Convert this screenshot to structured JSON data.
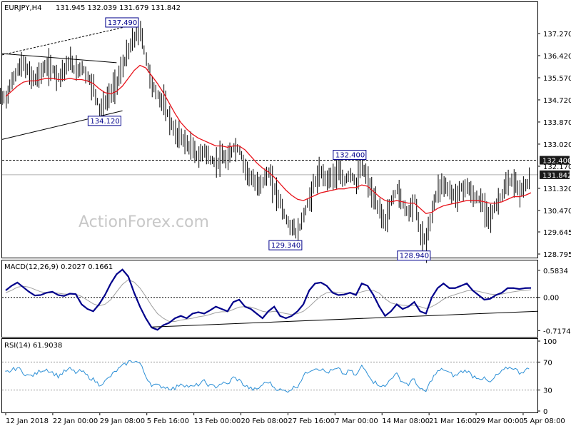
{
  "header": {
    "symbol": "EURJPY,H4",
    "ohlc": "131.945 132.039 131.679 131.842"
  },
  "watermark": "ActionForex.com",
  "colors": {
    "bars": "#000000",
    "ma": "#e8121a",
    "macd": "#00008b",
    "signal": "#a0a0a0",
    "rsi": "#2b8fd6",
    "annotation_border": "#00008b",
    "price_label_bg": "#1a1a1a",
    "price_label_text": "#ffffff"
  },
  "chart_data": [
    {
      "type": "ohlc",
      "panel": "price",
      "ylim": [
        128.795,
        138.12
      ],
      "y_ticks": [
        "137.270",
        "136.420",
        "135.570",
        "134.720",
        "133.870",
        "133.020",
        "132.170",
        "131.320",
        "130.470",
        "129.645",
        "128.795"
      ],
      "x_ticks": [
        "12 Jan 2018",
        "22 Jan 00:00",
        "29 Jan 08:00",
        "5 Feb 16:00",
        "13 Feb 00:00",
        "20 Feb 08:00",
        "27 Feb 16:00",
        "7 Mar 00:00",
        "14 Mar 08:00",
        "21 Mar 16:00",
        "29 Mar 00:00",
        "5 Apr 08:00"
      ],
      "series": [
        {
          "name": "",
          "kind": "close-path",
          "values": [
            134.8,
            135.4,
            135.9,
            136.1,
            135.7,
            135.5,
            135.8,
            136.0,
            135.9,
            135.6,
            135.9,
            136.2,
            135.8,
            136.0,
            135.6,
            135.2,
            134.4,
            134.6,
            135.0,
            135.4,
            136.0,
            136.6,
            137.1,
            137.4,
            136.3,
            135.3,
            134.9,
            134.6,
            134.0,
            133.4,
            133.3,
            133.0,
            132.8,
            132.5,
            132.8,
            132.4,
            132.3,
            132.5,
            132.4,
            132.9,
            132.8,
            132.1,
            131.7,
            131.4,
            131.6,
            131.9,
            131.3,
            130.8,
            130.1,
            129.8,
            129.6,
            130.3,
            130.9,
            131.6,
            131.9,
            131.7,
            131.8,
            131.9,
            131.6,
            131.9,
            131.5,
            132.2,
            131.6,
            130.9,
            130.5,
            130.0,
            130.8,
            131.3,
            130.7,
            130.4,
            130.9,
            129.6,
            129.2,
            130.5,
            131.3,
            131.5,
            131.2,
            131.0,
            131.3,
            131.4,
            131.0,
            130.9,
            130.6,
            130.2,
            130.7,
            131.1,
            131.5,
            131.6,
            131.2,
            131.4,
            131.8
          ]
        },
        {
          "name": "",
          "kind": "moving-average",
          "values": [
            134.85,
            135.05,
            135.25,
            135.4,
            135.45,
            135.45,
            135.5,
            135.55,
            135.55,
            135.5,
            135.5,
            135.55,
            135.5,
            135.5,
            135.45,
            135.35,
            135.15,
            135.0,
            134.95,
            135.05,
            135.25,
            135.55,
            135.85,
            136.05,
            135.95,
            135.65,
            135.35,
            135.0,
            134.6,
            134.2,
            133.85,
            133.6,
            133.4,
            133.25,
            133.15,
            133.05,
            132.95,
            132.95,
            132.9,
            132.95,
            132.95,
            132.8,
            132.55,
            132.3,
            132.1,
            131.95,
            131.75,
            131.5,
            131.25,
            131.05,
            130.9,
            130.85,
            130.95,
            131.05,
            131.15,
            131.2,
            131.25,
            131.3,
            131.3,
            131.35,
            131.35,
            131.45,
            131.4,
            131.2,
            131.0,
            130.85,
            130.8,
            130.85,
            130.8,
            130.75,
            130.75,
            130.55,
            130.35,
            130.4,
            130.55,
            130.65,
            130.7,
            130.75,
            130.8,
            130.85,
            130.85,
            130.85,
            130.8,
            130.75,
            130.75,
            130.8,
            130.9,
            131.0,
            131.0,
            131.05,
            131.15
          ]
        }
      ],
      "annotations": [
        {
          "label": "137.490",
          "value": 137.49,
          "position": "above"
        },
        {
          "label": "134.120",
          "value": 134.12,
          "position": "below"
        },
        {
          "label": "132.400",
          "value": 132.4,
          "position": "above"
        },
        {
          "label": "129.340",
          "value": 129.34,
          "position": "below"
        },
        {
          "label": "128.940",
          "value": 128.94,
          "position": "below"
        }
      ],
      "price_labels": [
        "132.400",
        "131.842"
      ],
      "horizontal_lines": [
        132.4,
        131.842
      ]
    },
    {
      "type": "line",
      "panel": "macd",
      "title": "MACD(12,26,9) 0.2027 0.1661",
      "ylim": [
        -0.82,
        0.75
      ],
      "y_ticks": [
        "0.5834",
        "0.00",
        "-0.7174"
      ],
      "series": [
        {
          "name": "",
          "kind": "macd",
          "values": [
            0.15,
            0.25,
            0.32,
            0.22,
            0.12,
            0.04,
            0.05,
            0.1,
            0.12,
            0.05,
            0.03,
            0.08,
            0.07,
            -0.15,
            -0.25,
            -0.3,
            -0.15,
            0.05,
            0.3,
            0.5,
            0.6,
            0.45,
            0.1,
            -0.2,
            -0.45,
            -0.65,
            -0.7,
            -0.6,
            -0.55,
            -0.45,
            -0.4,
            -0.45,
            -0.35,
            -0.32,
            -0.35,
            -0.28,
            -0.2,
            -0.25,
            -0.3,
            -0.1,
            -0.05,
            -0.2,
            -0.25,
            -0.35,
            -0.45,
            -0.3,
            -0.2,
            -0.4,
            -0.45,
            -0.4,
            -0.3,
            -0.15,
            0.15,
            0.3,
            0.32,
            0.25,
            0.1,
            0.05,
            0.06,
            0.1,
            0.05,
            0.3,
            0.25,
            0.05,
            -0.2,
            -0.4,
            -0.3,
            -0.15,
            -0.25,
            -0.2,
            -0.1,
            -0.3,
            -0.35,
            0.0,
            0.2,
            0.3,
            0.2,
            0.2,
            0.25,
            0.3,
            0.15,
            0.05,
            -0.05,
            -0.03,
            0.05,
            0.1,
            0.2,
            0.2,
            0.18,
            0.2,
            0.2027
          ]
        },
        {
          "name": "",
          "kind": "signal",
          "values": [
            0.1,
            0.15,
            0.22,
            0.24,
            0.22,
            0.17,
            0.12,
            0.1,
            0.1,
            0.09,
            0.07,
            0.07,
            0.07,
            0.02,
            -0.06,
            -0.14,
            -0.18,
            -0.15,
            -0.05,
            0.12,
            0.28,
            0.38,
            0.33,
            0.2,
            0.02,
            -0.18,
            -0.35,
            -0.45,
            -0.52,
            -0.52,
            -0.49,
            -0.47,
            -0.45,
            -0.42,
            -0.4,
            -0.37,
            -0.33,
            -0.31,
            -0.31,
            -0.26,
            -0.21,
            -0.2,
            -0.21,
            -0.25,
            -0.3,
            -0.32,
            -0.3,
            -0.32,
            -0.35,
            -0.37,
            -0.35,
            -0.3,
            -0.2,
            -0.08,
            0.03,
            0.1,
            0.12,
            0.1,
            0.09,
            0.09,
            0.08,
            0.12,
            0.15,
            0.15,
            0.09,
            -0.03,
            -0.12,
            -0.15,
            -0.17,
            -0.18,
            -0.17,
            -0.2,
            -0.24,
            -0.2,
            -0.13,
            -0.04,
            0.02,
            0.06,
            0.1,
            0.14,
            0.15,
            0.13,
            0.1,
            0.07,
            0.06,
            0.07,
            0.1,
            0.12,
            0.14,
            0.15,
            0.1661
          ]
        }
      ]
    },
    {
      "type": "line",
      "panel": "rsi",
      "title": "RSI(14) 61.9038",
      "ylim": [
        0,
        100
      ],
      "y_ticks": [
        "100",
        "70",
        "30",
        "0"
      ],
      "levels": [
        70,
        30
      ],
      "series": [
        {
          "name": "",
          "kind": "rsi",
          "values": [
            55,
            58,
            62,
            55,
            50,
            52,
            58,
            60,
            55,
            50,
            56,
            60,
            55,
            57,
            50,
            45,
            38,
            42,
            50,
            58,
            64,
            70,
            72,
            68,
            50,
            38,
            36,
            35,
            33,
            32,
            40,
            36,
            34,
            38,
            42,
            36,
            35,
            40,
            38,
            48,
            44,
            36,
            32,
            30,
            38,
            42,
            34,
            30,
            28,
            32,
            36,
            50,
            58,
            62,
            60,
            55,
            58,
            60,
            52,
            58,
            50,
            64,
            55,
            42,
            38,
            34,
            48,
            52,
            42,
            38,
            46,
            30,
            28,
            46,
            56,
            60,
            54,
            50,
            56,
            58,
            50,
            48,
            46,
            40,
            50,
            56,
            62,
            62,
            55,
            58,
            61.9
          ]
        }
      ]
    }
  ]
}
